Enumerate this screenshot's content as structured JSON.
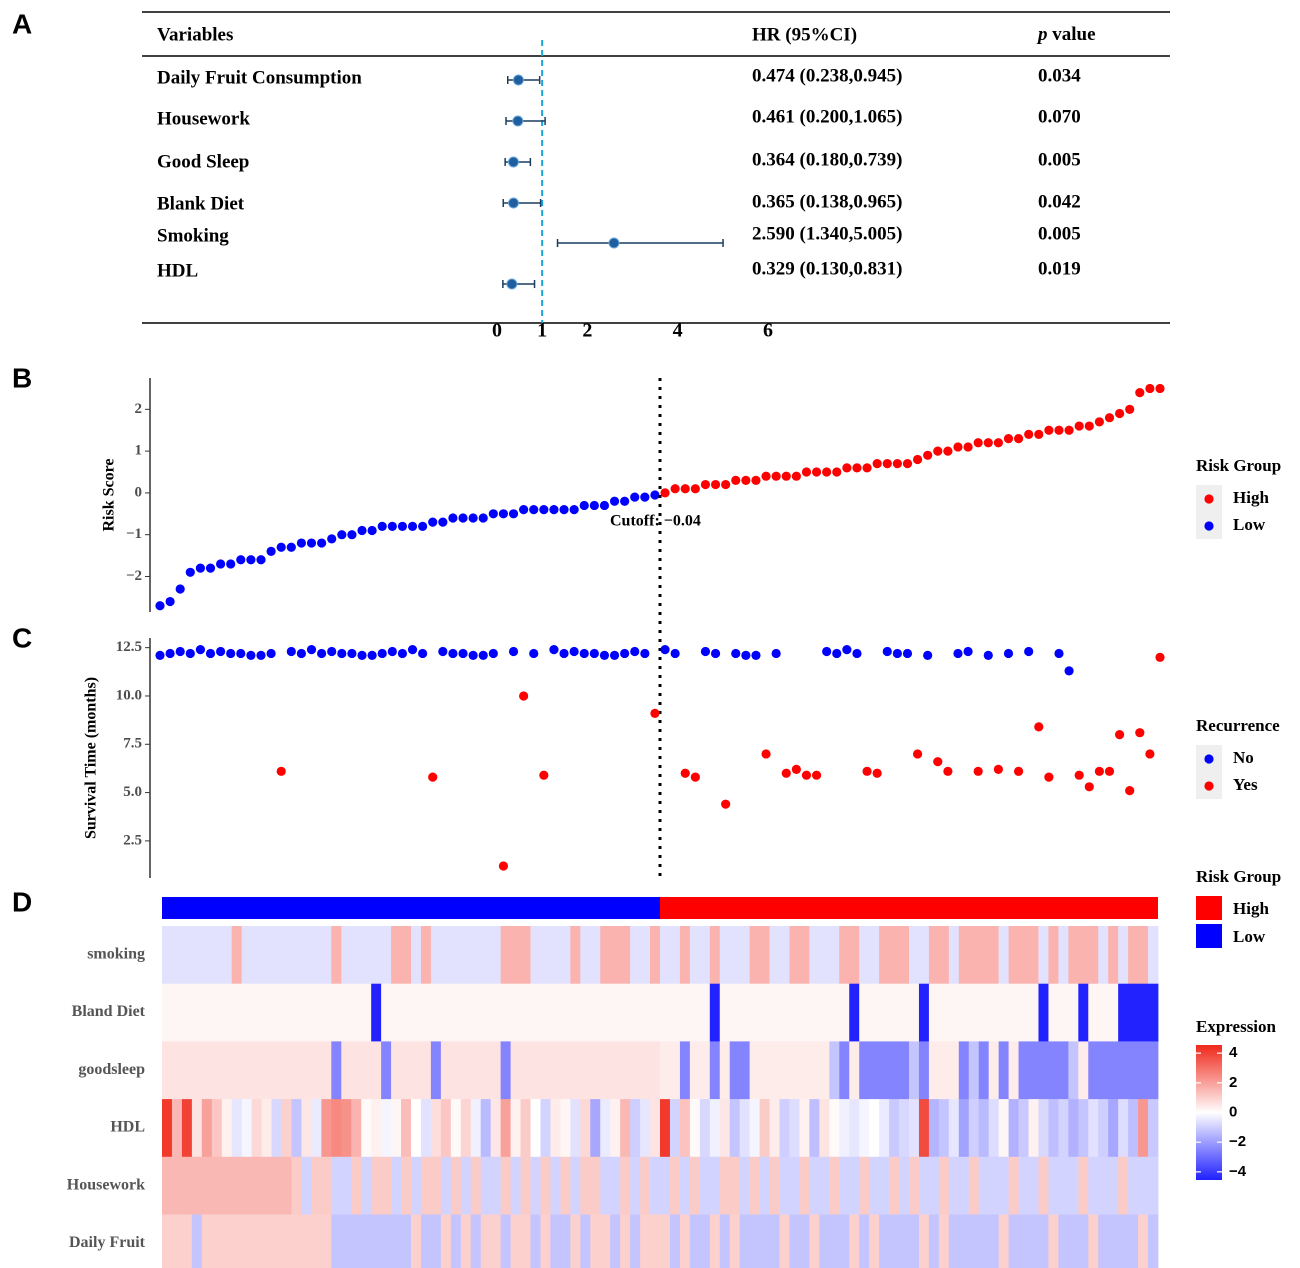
{
  "chart_data": [
    {
      "type": "forest",
      "panel": "A",
      "headers": [
        "Variables",
        "HR (95%CI)"
      ],
      "p_header": {
        "symbol": "p",
        "label": "value"
      },
      "categories": [
        "Daily Fruit Consumption",
        "Housework",
        "Good Sleep",
        "Blank Diet",
        "Smoking",
        "HDL"
      ],
      "values": [
        0.474,
        0.461,
        0.364,
        0.365,
        2.59,
        0.329
      ],
      "lower": [
        0.238,
        0.2,
        0.18,
        0.138,
        1.34,
        0.13
      ],
      "upper": [
        0.945,
        1.065,
        0.739,
        0.965,
        5.005,
        0.831
      ],
      "value_labels": [
        "0.474 (0.238,0.945)",
        "0.461 (0.200,1.065)",
        "0.364 (0.180,0.739)",
        "0.365 (0.138,0.965)",
        "2.590 (1.340,5.005)",
        "0.329 (0.130,0.831)"
      ],
      "p_values": [
        "0.034",
        "0.070",
        "0.005",
        "0.042",
        "0.005",
        "0.019"
      ],
      "reference": 1,
      "xlim": [
        0,
        6
      ],
      "xticks": [
        0,
        1,
        2,
        4,
        6
      ],
      "color": "#1f5f9f",
      "reference_color": "#1aa3d9"
    },
    {
      "type": "scatter",
      "panel": "B",
      "ylabel": "Risk Score",
      "legend_title": "Risk Group",
      "annotation": "Cutoff: −0.04",
      "series": [
        {
          "name": "High",
          "color": "#ff0000",
          "x": [
            51,
            52,
            53,
            54,
            55,
            56,
            57,
            58,
            59,
            60,
            61,
            62,
            63,
            64,
            65,
            66,
            67,
            68,
            69,
            70,
            71,
            72,
            73,
            74,
            75,
            76,
            77,
            78,
            79,
            80,
            81,
            82,
            83,
            84,
            85,
            86,
            87,
            88,
            89,
            90,
            91,
            92,
            93,
            94,
            95,
            96,
            97,
            98,
            99,
            100
          ],
          "values": [
            0.0,
            0.1,
            0.1,
            0.1,
            0.2,
            0.2,
            0.2,
            0.3,
            0.3,
            0.3,
            0.4,
            0.4,
            0.4,
            0.4,
            0.5,
            0.5,
            0.5,
            0.5,
            0.6,
            0.6,
            0.6,
            0.7,
            0.7,
            0.7,
            0.7,
            0.8,
            0.9,
            1.0,
            1.0,
            1.1,
            1.1,
            1.2,
            1.2,
            1.2,
            1.3,
            1.3,
            1.4,
            1.4,
            1.5,
            1.5,
            1.5,
            1.6,
            1.6,
            1.7,
            1.8,
            1.9,
            2.0,
            2.4,
            2.5,
            2.5
          ]
        },
        {
          "name": "Low",
          "color": "#0000ff",
          "x": [
            1,
            2,
            3,
            4,
            5,
            6,
            7,
            8,
            9,
            10,
            11,
            12,
            13,
            14,
            15,
            16,
            17,
            18,
            19,
            20,
            21,
            22,
            23,
            24,
            25,
            26,
            27,
            28,
            29,
            30,
            31,
            32,
            33,
            34,
            35,
            36,
            37,
            38,
            39,
            40,
            41,
            42,
            43,
            44,
            45,
            46,
            47,
            48,
            49,
            50
          ],
          "values": [
            -2.7,
            -2.6,
            -2.3,
            -1.9,
            -1.8,
            -1.8,
            -1.7,
            -1.7,
            -1.6,
            -1.6,
            -1.6,
            -1.4,
            -1.3,
            -1.3,
            -1.2,
            -1.2,
            -1.2,
            -1.1,
            -1.0,
            -1.0,
            -0.9,
            -0.9,
            -0.8,
            -0.8,
            -0.8,
            -0.8,
            -0.8,
            -0.7,
            -0.7,
            -0.6,
            -0.6,
            -0.6,
            -0.6,
            -0.5,
            -0.5,
            -0.5,
            -0.4,
            -0.4,
            -0.4,
            -0.4,
            -0.4,
            -0.4,
            -0.3,
            -0.3,
            -0.3,
            -0.2,
            -0.2,
            -0.1,
            -0.1,
            -0.05
          ]
        }
      ],
      "ylim": [
        -2.85,
        2.75
      ],
      "yticks": [
        {
          "value": -2,
          "label": "−2"
        },
        {
          "value": -1,
          "label": "−1"
        },
        0,
        1,
        2
      ]
    },
    {
      "type": "scatter",
      "panel": "C",
      "ylabel": "Survival Time (months)",
      "legend_title": "Recurrence",
      "series": [
        {
          "name": "No",
          "color": "#0000ff",
          "x": [
            1,
            2,
            3,
            4,
            5,
            6,
            7,
            8,
            9,
            10,
            11,
            12,
            14,
            15,
            16,
            17,
            18,
            19,
            20,
            21,
            22,
            23,
            24,
            25,
            26,
            27,
            29,
            30,
            31,
            32,
            33,
            34,
            36,
            38,
            40,
            41,
            42,
            43,
            44,
            45,
            46,
            47,
            48,
            49,
            51,
            52,
            55,
            56,
            58,
            59,
            60,
            62,
            67,
            68,
            69,
            70,
            73,
            74,
            75,
            77,
            80,
            81,
            83,
            85,
            87,
            90,
            91
          ],
          "values": [
            12.1,
            12.2,
            12.3,
            12.2,
            12.4,
            12.2,
            12.3,
            12.2,
            12.2,
            12.1,
            12.1,
            12.2,
            12.3,
            12.2,
            12.4,
            12.2,
            12.3,
            12.2,
            12.2,
            12.1,
            12.1,
            12.2,
            12.3,
            12.2,
            12.4,
            12.2,
            12.3,
            12.2,
            12.2,
            12.1,
            12.1,
            12.2,
            12.3,
            12.2,
            12.4,
            12.2,
            12.3,
            12.2,
            12.2,
            12.1,
            12.1,
            12.2,
            12.3,
            12.2,
            12.4,
            12.2,
            12.3,
            12.2,
            12.2,
            12.1,
            12.1,
            12.2,
            12.3,
            12.2,
            12.4,
            12.2,
            12.3,
            12.2,
            12.2,
            12.1,
            12.2,
            12.3,
            12.1,
            12.2,
            12.3,
            12.2,
            11.3
          ]
        },
        {
          "name": "Yes",
          "color": "#ff0000",
          "x": [
            13,
            28,
            35,
            37,
            39,
            50,
            53,
            54,
            57,
            61,
            63,
            64,
            65,
            66,
            71,
            72,
            76,
            78,
            79,
            82,
            84,
            86,
            88,
            89,
            92,
            93,
            94,
            95,
            96,
            97,
            98,
            99,
            100
          ],
          "values": [
            6.1,
            5.8,
            1.2,
            10.0,
            5.9,
            9.1,
            6.0,
            5.8,
            4.4,
            7.0,
            6.0,
            6.2,
            5.9,
            5.9,
            6.1,
            6.0,
            7.0,
            6.6,
            6.1,
            6.1,
            6.2,
            6.1,
            8.4,
            5.8,
            5.9,
            5.3,
            6.1,
            6.1,
            8.0,
            5.1,
            8.1,
            7.0,
            12.0
          ]
        }
      ],
      "ylim": [
        0.58,
        13.0
      ],
      "yticks": [
        2.5,
        {
          "value": 5,
          "label": "5.0"
        },
        7.5,
        {
          "value": 10,
          "label": "10.0"
        },
        12.5
      ]
    },
    {
      "type": "heatmap",
      "panel": "D",
      "rows": [
        "smoking",
        "Bland Diet",
        "goodsleep",
        "HDL",
        "Housework",
        "Daily Fruit"
      ],
      "values": [
        [
          -0.6,
          -0.6,
          -0.6,
          -0.6,
          -0.6,
          -0.6,
          -0.6,
          1.6,
          -0.6,
          -0.6,
          -0.6,
          -0.6,
          -0.6,
          -0.6,
          -0.6,
          -0.6,
          -0.6,
          1.6,
          -0.6,
          -0.6,
          -0.6,
          -0.6,
          -0.6,
          1.6,
          1.6,
          -0.6,
          1.6,
          -0.6,
          -0.6,
          -0.6,
          -0.6,
          -0.6,
          -0.6,
          -0.6,
          1.6,
          1.6,
          1.6,
          -0.6,
          -0.6,
          -0.6,
          -0.6,
          1.6,
          -0.6,
          -0.6,
          1.6,
          1.6,
          1.6,
          -0.6,
          -0.6,
          1.6,
          -0.6,
          -0.6,
          1.6,
          -0.6,
          -0.6,
          1.6,
          -0.6,
          -0.6,
          -0.6,
          1.6,
          1.6,
          -0.6,
          -0.6,
          1.6,
          1.6,
          -0.6,
          -0.6,
          -0.6,
          1.6,
          1.6,
          -0.6,
          -0.6,
          1.6,
          1.6,
          1.6,
          -0.6,
          -0.6,
          1.6,
          1.6,
          -0.6,
          1.6,
          1.6,
          1.6,
          1.6,
          -0.6,
          1.6,
          1.6,
          1.6,
          -0.6,
          1.6,
          -0.6,
          1.6,
          1.6,
          1.6,
          -0.6,
          1.6,
          -0.6,
          1.6,
          1.6,
          -0.6
        ],
        [
          0.2,
          0.2,
          0.2,
          0.2,
          0.2,
          0.2,
          0.2,
          0.2,
          0.2,
          0.2,
          0.2,
          0.2,
          0.2,
          0.2,
          0.2,
          0.2,
          0.2,
          0.2,
          0.2,
          0.2,
          0.2,
          -4.5,
          0.2,
          0.2,
          0.2,
          0.2,
          0.2,
          0.2,
          0.2,
          0.2,
          0.2,
          0.2,
          0.2,
          0.2,
          0.2,
          0.2,
          0.2,
          0.2,
          0.2,
          0.2,
          0.2,
          0.2,
          0.2,
          0.2,
          0.2,
          0.2,
          0.2,
          0.2,
          0.2,
          0.2,
          0.2,
          0.2,
          0.2,
          0.2,
          0.2,
          -4.5,
          0.2,
          0.2,
          0.2,
          0.2,
          0.2,
          0.2,
          0.2,
          0.2,
          0.2,
          0.2,
          0.2,
          0.2,
          0.2,
          -4.5,
          0.2,
          0.2,
          0.2,
          0.2,
          0.2,
          0.2,
          -4.5,
          0.2,
          0.2,
          0.2,
          0.2,
          0.2,
          0.2,
          0.2,
          0.2,
          0.2,
          0.2,
          0.2,
          -4.5,
          0.2,
          0.2,
          0.2,
          -4.5,
          0.2,
          0.2,
          0.2,
          -4.5,
          -4.5,
          -4.5,
          -4.5
        ],
        [
          0.6,
          0.6,
          0.6,
          0.6,
          0.6,
          0.6,
          0.6,
          0.6,
          0.6,
          0.6,
          0.6,
          0.6,
          0.6,
          0.6,
          0.6,
          0.6,
          0.6,
          -2.5,
          0.6,
          0.6,
          0.6,
          0.6,
          -2.5,
          0.6,
          0.6,
          0.6,
          0.6,
          -2.5,
          0.6,
          0.6,
          0.6,
          0.6,
          0.6,
          0.6,
          -2.5,
          0.6,
          0.6,
          0.6,
          0.6,
          0.6,
          0.6,
          0.6,
          0.6,
          0.6,
          0.6,
          0.6,
          0.6,
          0.6,
          0.6,
          0.6,
          0.4,
          0.4,
          -2.5,
          0.4,
          0.4,
          -2.5,
          0.4,
          -2.5,
          -2.5,
          0.4,
          0.4,
          0.4,
          0.4,
          0.4,
          0.4,
          0.4,
          0.4,
          -1.2,
          -2.5,
          0.4,
          -2.5,
          -2.5,
          -2.5,
          -2.5,
          -2.5,
          -1.2,
          -2.5,
          0.4,
          0.4,
          0.4,
          -2.5,
          -1.2,
          -2.5,
          0.4,
          -2.5,
          0.4,
          -2.5,
          -2.5,
          -2.5,
          -2.5,
          -2.5,
          -1.2,
          0.4,
          -2.5,
          -2.5,
          -2.5,
          -2.5,
          -2.5,
          -2.5,
          -2.5
        ],
        [
          4.2,
          1.5,
          4.0,
          0.6,
          2.0,
          1.2,
          0.3,
          -0.5,
          -0.2,
          0.8,
          0.4,
          -0.8,
          1.0,
          -1.2,
          0.5,
          -0.4,
          2.2,
          2.5,
          2.3,
          1.6,
          0.1,
          0.3,
          -0.2,
          0.2,
          1.4,
          0.0,
          -0.6,
          0.7,
          1.2,
          0.1,
          0.9,
          -0.3,
          -1.4,
          0.5,
          2.0,
          0.3,
          1.1,
          0.0,
          -0.9,
          0.4,
          0.2,
          -0.6,
          0.8,
          -1.8,
          -0.4,
          0.3,
          1.5,
          -1.0,
          -0.5,
          0.6,
          4.2,
          -0.9,
          1.3,
          0.1,
          -0.8,
          -0.3,
          0.5,
          -1.2,
          -0.6,
          -0.2,
          1.1,
          0.4,
          -1.0,
          -0.7,
          0.3,
          -1.3,
          0.6,
          0.1,
          -0.3,
          -0.5,
          -0.2,
          0.0,
          -0.4,
          -1.1,
          -0.8,
          -0.6,
          3.8,
          -1.5,
          -1.2,
          -0.5,
          -1.9,
          -1.0,
          -1.4,
          -0.7,
          0.2,
          -1.6,
          -1.1,
          0.3,
          -0.8,
          -1.3,
          -0.9,
          -1.6,
          -1.2,
          -0.6,
          -1.0,
          -1.8,
          -0.7,
          -1.3,
          2.2,
          -1.1
        ],
        [
          1.5,
          1.5,
          1.5,
          1.5,
          1.5,
          1.5,
          1.5,
          1.5,
          1.5,
          1.5,
          1.5,
          1.5,
          1.5,
          1.1,
          -0.9,
          1.1,
          1.1,
          -0.9,
          -0.9,
          1.1,
          -0.9,
          1.1,
          1.1,
          -0.9,
          1.1,
          -0.9,
          1.1,
          1.1,
          -0.9,
          1.1,
          -0.9,
          1.1,
          -0.9,
          -0.9,
          1.1,
          -0.9,
          1.1,
          -0.9,
          1.1,
          -0.9,
          1.1,
          -0.9,
          1.1,
          1.1,
          -0.9,
          -0.9,
          1.1,
          -0.9,
          1.1,
          -0.9,
          -0.9,
          1.1,
          -0.9,
          1.1,
          -0.9,
          -0.9,
          1.1,
          1.1,
          -0.9,
          1.1,
          -0.9,
          1.1,
          -0.9,
          -0.9,
          1.1,
          -0.9,
          -0.9,
          1.1,
          -0.9,
          -0.9,
          1.1,
          -0.9,
          -0.9,
          1.1,
          -0.9,
          1.1,
          -0.9,
          -0.9,
          1.1,
          -0.9,
          -0.9,
          1.1,
          -0.9,
          -0.9,
          -0.9,
          1.1,
          -0.9,
          -0.9,
          1.1,
          -0.9,
          -0.9,
          -0.9,
          1.1,
          -0.9,
          -0.9,
          -0.9,
          1.1,
          -0.9,
          -0.9,
          -0.9
        ],
        [
          1.0,
          1.0,
          1.0,
          -1.2,
          1.0,
          1.0,
          1.0,
          1.0,
          1.0,
          1.0,
          1.0,
          1.0,
          1.0,
          1.0,
          1.0,
          1.0,
          1.0,
          -1.2,
          -1.2,
          -1.2,
          -1.2,
          -1.2,
          -1.2,
          -1.2,
          -1.2,
          1.0,
          -1.2,
          -1.2,
          1.0,
          -1.2,
          1.0,
          -1.2,
          1.0,
          1.0,
          -1.2,
          1.0,
          1.0,
          -1.2,
          1.0,
          -1.2,
          -1.2,
          1.0,
          -1.2,
          1.0,
          1.0,
          -1.2,
          1.0,
          -1.2,
          1.0,
          1.0,
          1.0,
          -1.2,
          1.0,
          -1.2,
          -1.2,
          1.0,
          -1.2,
          1.0,
          -1.2,
          -1.2,
          -1.2,
          -1.2,
          1.0,
          -1.2,
          -1.2,
          1.0,
          -1.2,
          -1.2,
          -1.2,
          1.0,
          -1.2,
          1.0,
          -1.2,
          -1.2,
          -1.2,
          -1.2,
          1.0,
          -1.2,
          1.0,
          -1.2,
          -1.2,
          -1.2,
          -1.2,
          -1.2,
          1.0,
          -1.2,
          -1.2,
          -1.2,
          -1.2,
          1.0,
          -1.2,
          -1.2,
          -1.2,
          1.0,
          -1.2,
          -1.2,
          -1.2,
          -1.2,
          1.0,
          -1.2
        ]
      ],
      "annotation": {
        "title": "Risk Group",
        "series": [
          {
            "name": "High",
            "color": "#ff0000",
            "count": 50
          },
          {
            "name": "Low",
            "color": "#0000ff",
            "count": 50
          }
        ]
      },
      "legend_title": "Expression",
      "clim": [
        -4.55,
        4.55
      ],
      "colors": [
        "#2020ff",
        "#ffffff",
        "#f0281a"
      ],
      "ticks": [
        4,
        2,
        0,
        {
          "value": -2,
          "label": "−2"
        },
        {
          "value": -4,
          "label": "−4"
        }
      ]
    }
  ]
}
